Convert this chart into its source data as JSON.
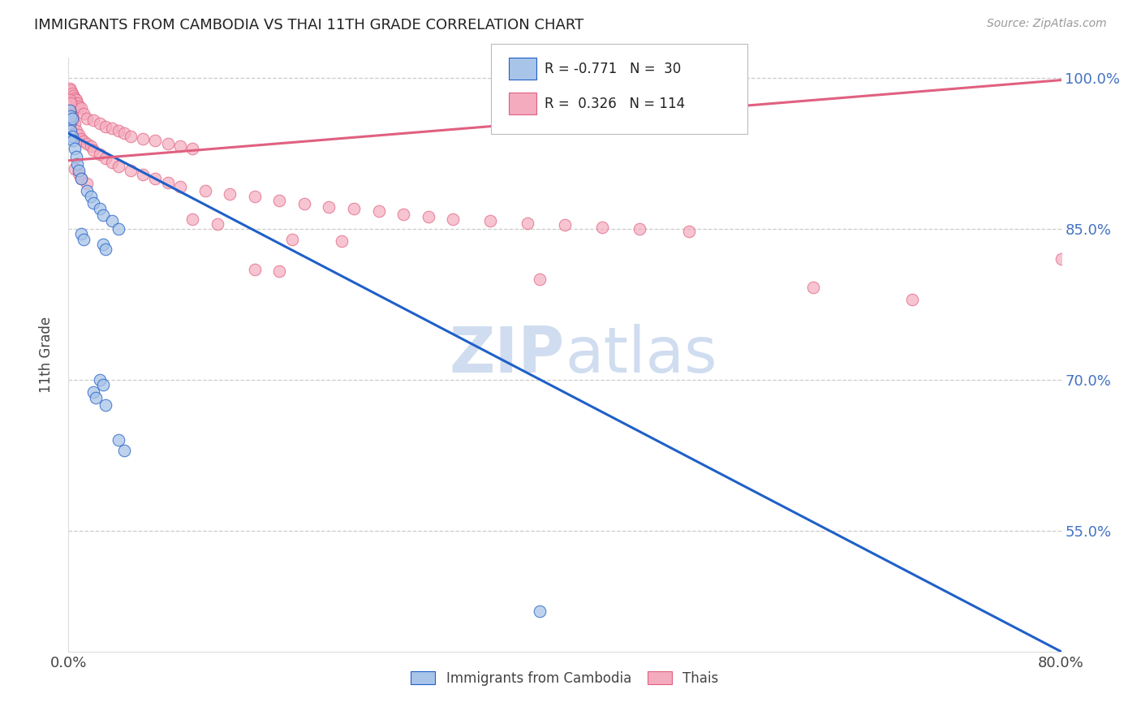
{
  "title": "IMMIGRANTS FROM CAMBODIA VS THAI 11TH GRADE CORRELATION CHART",
  "source": "Source: ZipAtlas.com",
  "ylabel": "11th Grade",
  "legend_label_blue": "Immigrants from Cambodia",
  "legend_label_pink": "Thais",
  "blue_color": "#a8c4e8",
  "pink_color": "#f4abbe",
  "trend_blue_color": "#2060c8",
  "trend_pink_color": "#e06080",
  "watermark_zip": "ZIP",
  "watermark_atlas": "atlas",
  "blue_scatter": [
    [
      0.001,
      0.955
    ],
    [
      0.002,
      0.948
    ],
    [
      0.003,
      0.942
    ],
    [
      0.004,
      0.938
    ],
    [
      0.005,
      0.93
    ],
    [
      0.006,
      0.922
    ],
    [
      0.007,
      0.915
    ],
    [
      0.001,
      0.968
    ],
    [
      0.002,
      0.962
    ],
    [
      0.008,
      0.908
    ],
    [
      0.01,
      0.9
    ],
    [
      0.003,
      0.96
    ],
    [
      0.015,
      0.888
    ],
    [
      0.018,
      0.882
    ],
    [
      0.02,
      0.876
    ],
    [
      0.025,
      0.87
    ],
    [
      0.028,
      0.864
    ],
    [
      0.035,
      0.858
    ],
    [
      0.04,
      0.85
    ],
    [
      0.01,
      0.845
    ],
    [
      0.012,
      0.84
    ],
    [
      0.028,
      0.835
    ],
    [
      0.03,
      0.83
    ],
    [
      0.025,
      0.7
    ],
    [
      0.028,
      0.695
    ],
    [
      0.02,
      0.688
    ],
    [
      0.022,
      0.682
    ],
    [
      0.03,
      0.675
    ],
    [
      0.04,
      0.64
    ],
    [
      0.045,
      0.63
    ],
    [
      0.38,
      0.47
    ]
  ],
  "pink_scatter": [
    [
      0.001,
      0.99
    ],
    [
      0.002,
      0.988
    ],
    [
      0.003,
      0.985
    ],
    [
      0.004,
      0.982
    ],
    [
      0.005,
      0.98
    ],
    [
      0.006,
      0.978
    ],
    [
      0.007,
      0.975
    ],
    [
      0.008,
      0.972
    ],
    [
      0.001,
      0.968
    ],
    [
      0.002,
      0.965
    ],
    [
      0.003,
      0.962
    ],
    [
      0.004,
      0.958
    ],
    [
      0.005,
      0.955
    ],
    [
      0.001,
      0.978
    ],
    [
      0.002,
      0.975
    ],
    [
      0.01,
      0.97
    ],
    [
      0.012,
      0.965
    ],
    [
      0.015,
      0.96
    ],
    [
      0.02,
      0.958
    ],
    [
      0.025,
      0.955
    ],
    [
      0.03,
      0.952
    ],
    [
      0.035,
      0.95
    ],
    [
      0.04,
      0.948
    ],
    [
      0.045,
      0.945
    ],
    [
      0.05,
      0.942
    ],
    [
      0.06,
      0.94
    ],
    [
      0.07,
      0.938
    ],
    [
      0.08,
      0.935
    ],
    [
      0.09,
      0.932
    ],
    [
      0.1,
      0.93
    ],
    [
      0.006,
      0.948
    ],
    [
      0.008,
      0.944
    ],
    [
      0.01,
      0.94
    ],
    [
      0.012,
      0.937
    ],
    [
      0.015,
      0.935
    ],
    [
      0.018,
      0.932
    ],
    [
      0.02,
      0.928
    ],
    [
      0.025,
      0.924
    ],
    [
      0.03,
      0.92
    ],
    [
      0.035,
      0.916
    ],
    [
      0.04,
      0.912
    ],
    [
      0.05,
      0.908
    ],
    [
      0.06,
      0.904
    ],
    [
      0.07,
      0.9
    ],
    [
      0.08,
      0.896
    ],
    [
      0.09,
      0.892
    ],
    [
      0.11,
      0.888
    ],
    [
      0.13,
      0.885
    ],
    [
      0.15,
      0.882
    ],
    [
      0.17,
      0.878
    ],
    [
      0.19,
      0.875
    ],
    [
      0.21,
      0.872
    ],
    [
      0.23,
      0.87
    ],
    [
      0.25,
      0.868
    ],
    [
      0.27,
      0.865
    ],
    [
      0.29,
      0.862
    ],
    [
      0.31,
      0.86
    ],
    [
      0.34,
      0.858
    ],
    [
      0.37,
      0.856
    ],
    [
      0.4,
      0.854
    ],
    [
      0.43,
      0.852
    ],
    [
      0.46,
      0.85
    ],
    [
      0.5,
      0.848
    ],
    [
      0.005,
      0.91
    ],
    [
      0.008,
      0.905
    ],
    [
      0.01,
      0.9
    ],
    [
      0.015,
      0.895
    ],
    [
      0.15,
      0.81
    ],
    [
      0.17,
      0.808
    ],
    [
      0.38,
      0.8
    ],
    [
      0.6,
      0.792
    ],
    [
      0.18,
      0.84
    ],
    [
      0.22,
      0.838
    ],
    [
      0.1,
      0.86
    ],
    [
      0.12,
      0.855
    ],
    [
      0.68,
      0.78
    ],
    [
      0.8,
      0.82
    ]
  ],
  "xlim": [
    0.0,
    0.8
  ],
  "ylim": [
    0.43,
    1.02
  ],
  "ytick_vals": [
    0.55,
    0.7,
    0.85,
    1.0
  ],
  "ytick_labels": [
    "55.0%",
    "70.0%",
    "85.0%",
    "100.0%"
  ],
  "blue_trend_x": [
    0.0,
    0.8
  ],
  "blue_trend_y": [
    0.945,
    0.43
  ],
  "pink_trend_x": [
    0.0,
    0.8
  ],
  "pink_trend_y": [
    0.918,
    0.998
  ]
}
